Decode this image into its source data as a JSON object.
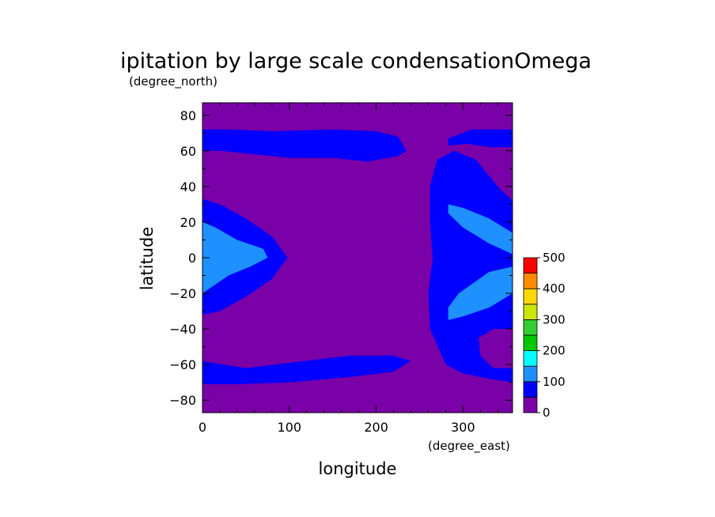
{
  "chart_data": {
    "type": "heatmap",
    "title": "ipitation by large scale condensationOmega",
    "xlabel": "longitude",
    "ylabel": "latitude",
    "x_units": "(degree_east)",
    "y_units": "(degree_north)",
    "xlim": [
      0,
      357
    ],
    "ylim": [
      -87,
      87
    ],
    "x_ticks": [
      0,
      100,
      200,
      300
    ],
    "y_ticks": [
      80,
      60,
      40,
      20,
      0,
      -20,
      -40,
      -60,
      -80
    ],
    "colorbar": {
      "levels": [
        0,
        50,
        100,
        150,
        200,
        250,
        300,
        350,
        400,
        450,
        500
      ],
      "tick_labels": [
        "0",
        "100",
        "200",
        "300",
        "400",
        "500"
      ],
      "colors": [
        "#7a00a8",
        "#0000ff",
        "#1e90ff",
        "#00ffff",
        "#00c800",
        "#32cd32",
        "#c8e600",
        "#ffd700",
        "#ff8c00",
        "#ff0000",
        "#f4a0a0"
      ]
    },
    "background_color": "#7a00a8",
    "regions": [
      {
        "level": 1,
        "color": "#0000ff",
        "points": [
          [
            0,
            72
          ],
          [
            30,
            72
          ],
          [
            80,
            71
          ],
          [
            150,
            72
          ],
          [
            200,
            71
          ],
          [
            225,
            68
          ],
          [
            235,
            60
          ],
          [
            225,
            57
          ],
          [
            190,
            54
          ],
          [
            150,
            56
          ],
          [
            100,
            56
          ],
          [
            60,
            58
          ],
          [
            20,
            60
          ],
          [
            0,
            60
          ]
        ]
      },
      {
        "level": 1,
        "color": "#0000ff",
        "points": [
          [
            283,
            67
          ],
          [
            310,
            72
          ],
          [
            357,
            72
          ],
          [
            357,
            62
          ],
          [
            330,
            62
          ],
          [
            305,
            64
          ],
          [
            283,
            63
          ]
        ]
      },
      {
        "level": 1,
        "color": "#0000ff",
        "points": [
          [
            0,
            33
          ],
          [
            20,
            30
          ],
          [
            50,
            22
          ],
          [
            80,
            12
          ],
          [
            98,
            0
          ],
          [
            80,
            -12
          ],
          [
            50,
            -22
          ],
          [
            20,
            -30
          ],
          [
            0,
            -32
          ]
        ]
      },
      {
        "level": 1,
        "color": "#0000ff",
        "points": [
          [
            0,
            -58
          ],
          [
            50,
            -62
          ],
          [
            100,
            -59
          ],
          [
            170,
            -55
          ],
          [
            220,
            -55
          ],
          [
            240,
            -58
          ],
          [
            220,
            -64
          ],
          [
            170,
            -67
          ],
          [
            100,
            -70
          ],
          [
            40,
            -71
          ],
          [
            0,
            -71
          ]
        ]
      },
      {
        "level": 1,
        "color": "#0000ff",
        "points": [
          [
            262,
            40
          ],
          [
            270,
            55
          ],
          [
            290,
            60
          ],
          [
            315,
            55
          ],
          [
            340,
            40
          ],
          [
            357,
            32
          ],
          [
            357,
            -70
          ],
          [
            330,
            -68
          ],
          [
            300,
            -65
          ],
          [
            280,
            -60
          ],
          [
            262,
            -40
          ],
          [
            260,
            -20
          ],
          [
            265,
            0
          ],
          [
            262,
            20
          ]
        ]
      },
      {
        "level": 2,
        "color": "#1e90ff",
        "points": [
          [
            0,
            20
          ],
          [
            15,
            17
          ],
          [
            40,
            10
          ],
          [
            70,
            5
          ],
          [
            75,
            0
          ],
          [
            55,
            -5
          ],
          [
            30,
            -10
          ],
          [
            15,
            -15
          ],
          [
            0,
            -20
          ]
        ]
      },
      {
        "level": 2,
        "color": "#1e90ff",
        "points": [
          [
            283,
            30
          ],
          [
            300,
            28
          ],
          [
            330,
            22
          ],
          [
            357,
            14
          ],
          [
            357,
            2
          ],
          [
            330,
            8
          ],
          [
            300,
            17
          ],
          [
            283,
            25
          ]
        ]
      },
      {
        "level": 2,
        "color": "#1e90ff",
        "points": [
          [
            283,
            -28
          ],
          [
            295,
            -20
          ],
          [
            330,
            -8
          ],
          [
            357,
            -5
          ],
          [
            357,
            -20
          ],
          [
            330,
            -28
          ],
          [
            300,
            -33
          ],
          [
            283,
            -35
          ]
        ]
      },
      {
        "level": 0,
        "color": "#7a00a8",
        "points": [
          [
            318,
            -45
          ],
          [
            335,
            -40
          ],
          [
            357,
            -40
          ],
          [
            357,
            -62
          ],
          [
            335,
            -62
          ],
          [
            320,
            -55
          ]
        ]
      }
    ]
  }
}
